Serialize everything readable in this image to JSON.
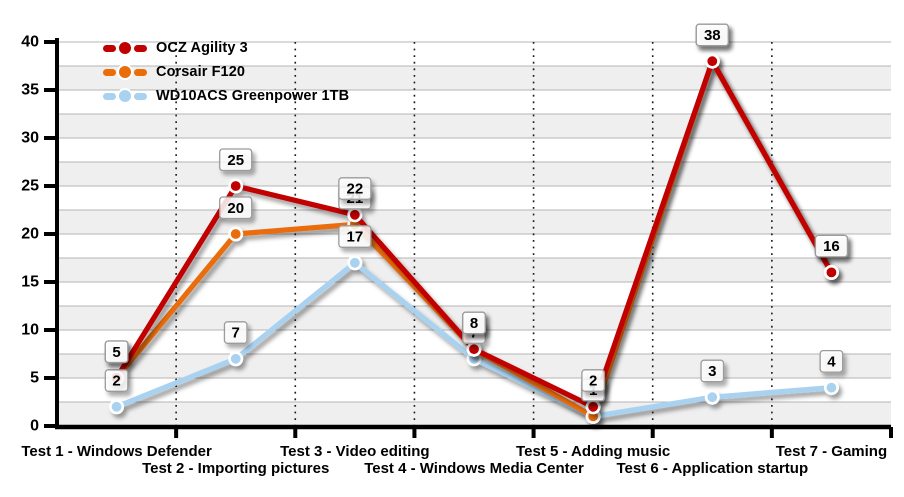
{
  "chart_data": {
    "type": "line",
    "title": "",
    "categories": [
      "Test 1 - Windows Defender",
      "Test 2 - Importing pictures",
      "Test 3 - Video editing",
      "Test 4 - Windows Media Center",
      "Test 5 - Adding music",
      "Test 6 - Application startup",
      "Test 7 - Gaming"
    ],
    "series": [
      {
        "name": "OCZ Agility 3",
        "color": "#c10000",
        "values": [
          5,
          25,
          22,
          8,
          2,
          38,
          16
        ]
      },
      {
        "name": "Corsair F120",
        "color": "#e96d0b",
        "values": [
          5,
          20,
          21,
          8,
          1,
          38,
          16
        ]
      },
      {
        "name": "WD10ACS Greenpower 1TB",
        "color": "#a9d2f0",
        "values": [
          2,
          7,
          17,
          7,
          1,
          3,
          4
        ]
      }
    ],
    "y_axis": {
      "min": 0,
      "max": 40,
      "tick_step": 5,
      "band_step": 2.5,
      "ticks": [
        0,
        5,
        10,
        15,
        20,
        25,
        30,
        35,
        40
      ]
    },
    "xlabel": "",
    "ylabel": "",
    "data_labels": true,
    "legend_position": "top-left",
    "grid": {
      "h_gridlines": true,
      "v_gridlines_dotted": true,
      "alternating_bands": true
    }
  },
  "colors": {
    "band": "#efefef",
    "gridline": "#b5b5b5",
    "dotted_gridline": "#1a1a1a",
    "axis": "#000000",
    "label_fill": "rgba(255,255,255,0.84)",
    "label_border": "#9b9b9b",
    "marker_ring": "#ffffff",
    "text": "#000000"
  }
}
